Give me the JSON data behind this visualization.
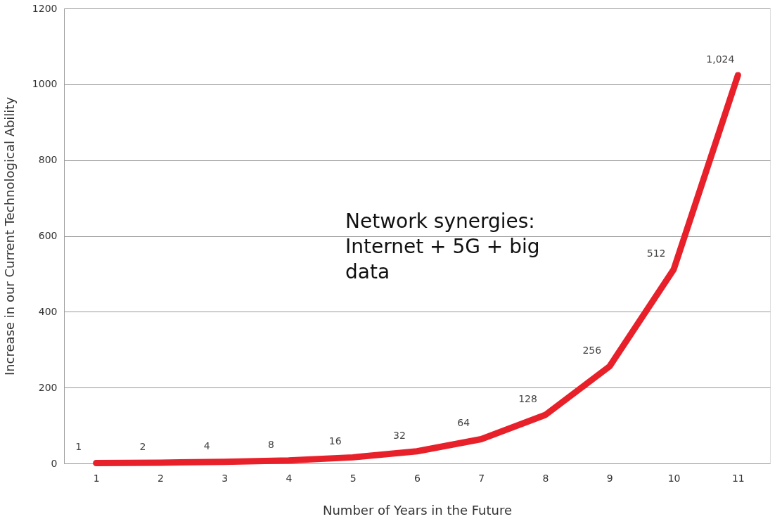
{
  "chart_data": {
    "type": "line",
    "xlabel": "Number of Years in the Future",
    "ylabel": "Increase in our Current Technological Ability",
    "categories": [
      "1",
      "2",
      "3",
      "4",
      "5",
      "6",
      "7",
      "8",
      "9",
      "10",
      "11"
    ],
    "series": [
      {
        "color": "#e8202a",
        "values": [
          1,
          2,
          4,
          8,
          16,
          32,
          64,
          128,
          256,
          512,
          1024
        ],
        "value_labels": [
          "1",
          "2",
          "4",
          "8",
          "16",
          "32",
          "64",
          "128",
          "256",
          "512",
          "1,024"
        ]
      }
    ],
    "ylim": [
      0,
      1200
    ],
    "yticks": [
      0,
      200,
      400,
      600,
      800,
      1000,
      1200
    ],
    "grid": "y",
    "marker": "none",
    "line_style": "solid",
    "annotations": [
      "Network synergies:\nInternet + 5G + big\ndata"
    ]
  }
}
